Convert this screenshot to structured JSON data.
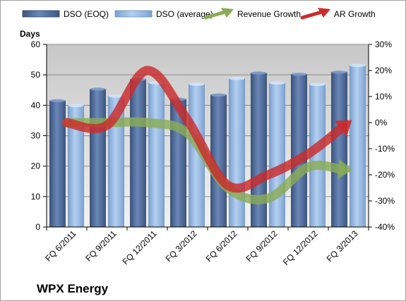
{
  "chart_data": {
    "type": "bar",
    "company": "WPX Energy",
    "ylabel_left": "Days",
    "categories": [
      "FQ 6/2011",
      "FQ 9/2011",
      "FQ 12/2011",
      "FQ 3/2012",
      "FQ 6/2012",
      "FQ 9/2012",
      "FQ 12/2012",
      "FQ 3/2013"
    ],
    "series": [
      {
        "name": "DSO (EOQ)",
        "kind": "bar",
        "axis": "left",
        "color": "#4f6a96",
        "values": [
          41.5,
          45.3,
          48.5,
          42.0,
          43.4,
          50.6,
          50.2,
          50.9
        ]
      },
      {
        "name": "DSO (average)",
        "kind": "bar",
        "axis": "left",
        "color": "#8fb3e0",
        "values": [
          39.9,
          43.0,
          47.4,
          46.9,
          48.8,
          47.3,
          46.8,
          53.1
        ]
      },
      {
        "name": "Revenue Growth",
        "kind": "arrow",
        "axis": "right",
        "color": "#8aac57",
        "values": [
          0.0,
          0.0,
          0.0,
          -4.0,
          -25.0,
          -29.0,
          -17.0,
          -18.0
        ]
      },
      {
        "name": "AR Growth",
        "kind": "arrow",
        "axis": "right",
        "color": "#cc2b2b",
        "values": [
          0.0,
          -1.0,
          20.0,
          1.0,
          -24.0,
          -20.0,
          -12.0,
          0.0
        ]
      }
    ],
    "ylim_left": [
      0,
      60
    ],
    "yticks_left": [
      "0",
      "10",
      "20",
      "30",
      "40",
      "50",
      "60"
    ],
    "ylim_right": [
      -40,
      30
    ],
    "yticks_right": [
      "-40%",
      "-30%",
      "-20%",
      "-10%",
      "0%",
      "10%",
      "20%",
      "30%"
    ],
    "grid": true,
    "legend": "top"
  }
}
